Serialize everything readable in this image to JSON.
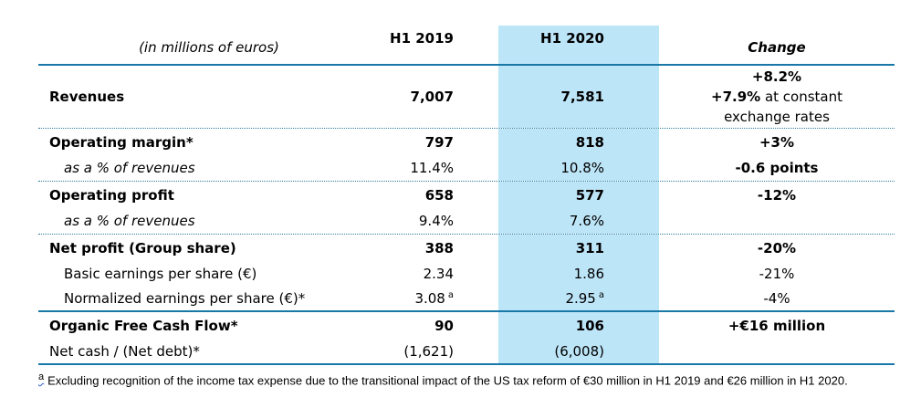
{
  "table": {
    "header": {
      "unit_label": "(in millions of euros)",
      "col_2019": "H1 2019",
      "col_2020": "H1 2020",
      "col_change": "Change"
    },
    "rows": [
      {
        "label": "Revenues",
        "v2019": "7,007",
        "v2020": "7,581"
      },
      {
        "label": "Operating margin*",
        "v2019": "797",
        "v2020": "818",
        "change": "+3%"
      },
      {
        "label": "as a % of revenues",
        "v2019": "11.4%",
        "v2020": "10.8%",
        "change": "-0.6 points"
      },
      {
        "label": "Operating profit",
        "v2019": "658",
        "v2020": "577",
        "change": "-12%"
      },
      {
        "label": "as a % of revenues",
        "v2019": "9.4%",
        "v2020": "7.6%",
        "change": ""
      },
      {
        "label": "Net profit (Group share)",
        "v2019": "388",
        "v2020": "311",
        "change": "-20%"
      },
      {
        "label": "Basic earnings per share (€)",
        "v2019": "2.34",
        "v2020": "1.86",
        "change": "-21%"
      },
      {
        "label": "Normalized earnings per share (€)*",
        "v2019": "3.08",
        "v2019_sup": "a",
        "v2020": "2.95",
        "v2020_sup": "a",
        "change": "-4%"
      },
      {
        "label": "Organic Free Cash Flow*",
        "v2019": "90",
        "v2020": "106",
        "change": "+€16 million"
      },
      {
        "label": "Net cash / (Net debt)*",
        "v2019": "(1,621)",
        "v2020": "(6,008)",
        "change": ""
      }
    ],
    "revenues_change": {
      "line1": "+8.2%",
      "line2_bold": "+7.9%",
      "line2_rest": " at constant",
      "line3": "exchange rates"
    }
  },
  "footnote": {
    "marker": "a",
    "text": "Excluding recognition of the income tax expense due to the transitional impact of the US tax reform of €30 million in H1 2019 and €26 million in H1 2020."
  },
  "colors": {
    "highlight": "#BDE5F8",
    "rule_solid": "#1878A8",
    "rule_dotted": "#2E7D9B"
  }
}
